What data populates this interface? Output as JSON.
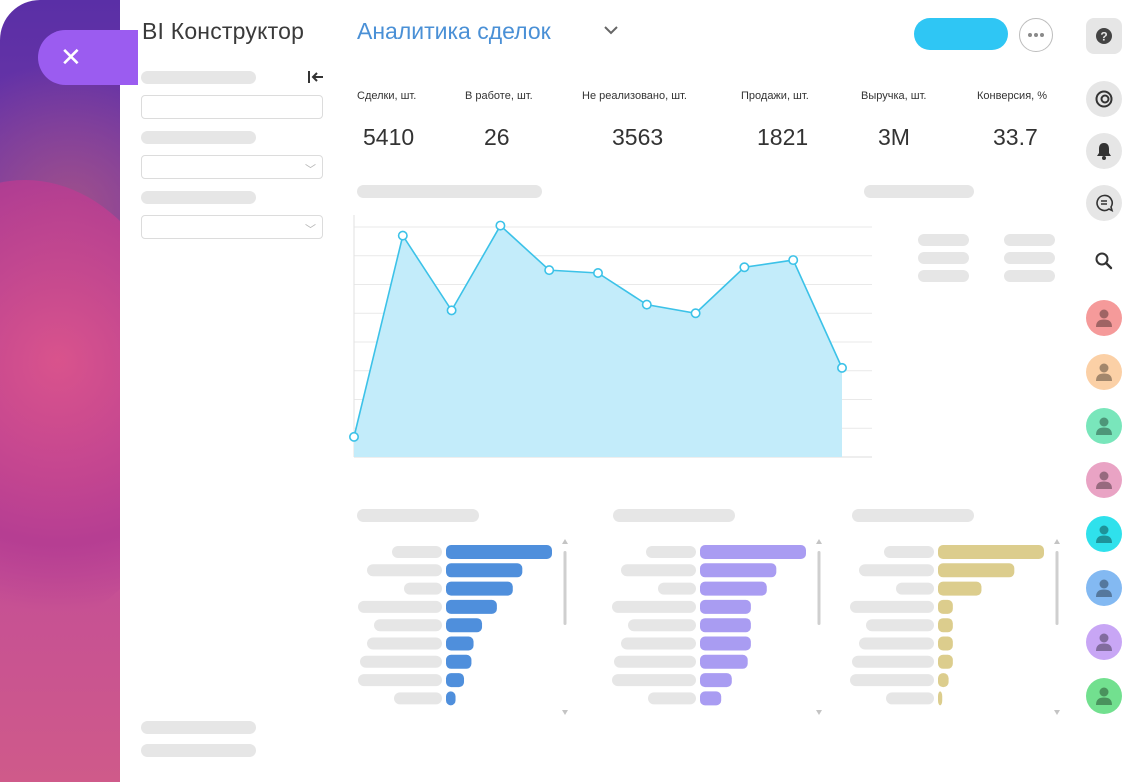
{
  "app": {
    "title": "BI Конструктор"
  },
  "header": {
    "report_title": "Аналитика сделок"
  },
  "kpis": [
    {
      "label": "Сделки, шт.",
      "value": "5410"
    },
    {
      "label": "В работе, шт.",
      "value": "26"
    },
    {
      "label": "Не реализовано, шт.",
      "value": "3563"
    },
    {
      "label": "Продажи, шт.",
      "value": "1821"
    },
    {
      "label": "Выручка, шт.",
      "value": "3M"
    },
    {
      "label": "Конверсия, %",
      "value": "33.7"
    }
  ],
  "icons": {
    "close": "close-icon",
    "collapse": "collapse-left-icon",
    "report_dropdown": "chevron-down-icon",
    "more": "more-horizontal-icon",
    "rail": [
      "help-icon",
      "currency-icon",
      "bell-icon",
      "chat-icon",
      "search-icon"
    ]
  },
  "colors": {
    "accent": "#2fc6f4",
    "title_blue": "#4a90d6",
    "close_button": "#9b5cf0",
    "area_fill": "#c3ecfa",
    "line": "#3cc2e8",
    "bar_series": [
      "#4f8fdc",
      "#a99cf2",
      "#dccd8d"
    ]
  },
  "avatars": [
    "#f59a9a",
    "#fbd0a6",
    "#79e6bb",
    "#e9a3c4",
    "#2fe1ec",
    "#83b9f2",
    "#c8a6f5",
    "#72e08f"
  ],
  "chart_data": [
    {
      "type": "area",
      "x": [
        1,
        2,
        3,
        4,
        5,
        6,
        7,
        8,
        9,
        10,
        11
      ],
      "values": [
        7,
        77,
        51,
        80.5,
        65,
        64,
        53,
        50,
        66,
        68.5,
        31
      ],
      "ylim": [
        0,
        80
      ],
      "grid": true
    },
    {
      "type": "bar",
      "orientation": "horizontal",
      "values": [
        100,
        72,
        63,
        48,
        34,
        26,
        24,
        17,
        9
      ]
    },
    {
      "type": "bar",
      "orientation": "horizontal",
      "values": [
        100,
        72,
        63,
        48,
        48,
        48,
        45,
        30,
        20
      ]
    },
    {
      "type": "bar",
      "orientation": "horizontal",
      "values": [
        100,
        72,
        41,
        14,
        14,
        14,
        14,
        10,
        4
      ]
    }
  ]
}
